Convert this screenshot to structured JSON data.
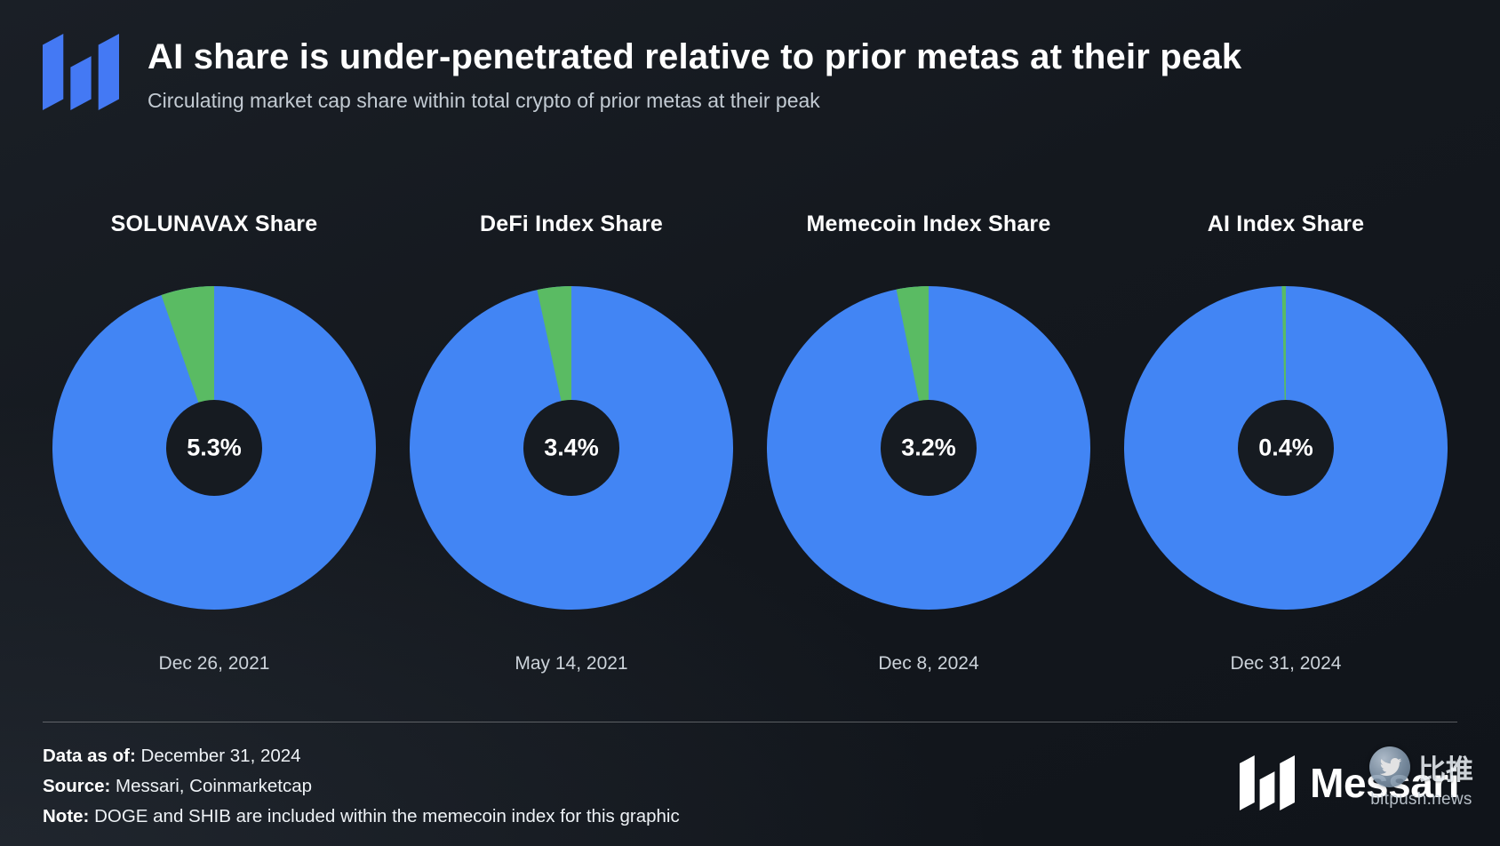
{
  "header": {
    "title": "AI share is under-penetrated relative to prior metas at their peak",
    "subtitle": "Circulating market cap share within total crypto of prior metas at their peak"
  },
  "chart_data": {
    "type": "pie",
    "subtype": "donut",
    "unit": "%",
    "start_angle": "top",
    "direction": "counterclockwise",
    "legend_position": "none",
    "colors": {
      "share": "#5ABB63",
      "rest": "#4285F4",
      "hole": "#161B21"
    },
    "charts": [
      {
        "title": "SOLUNAVAX Share",
        "share_pct": 5.3,
        "rest_pct": 94.7,
        "center_label": "5.3%",
        "date": "Dec 26, 2021"
      },
      {
        "title": "DeFi Index Share",
        "share_pct": 3.4,
        "rest_pct": 96.6,
        "center_label": "3.4%",
        "date": "May 14, 2021"
      },
      {
        "title": "Memecoin Index Share",
        "share_pct": 3.2,
        "rest_pct": 96.8,
        "center_label": "3.2%",
        "date": "Dec 8, 2024"
      },
      {
        "title": "AI Index Share",
        "share_pct": 0.4,
        "rest_pct": 99.6,
        "center_label": "0.4%",
        "date": "Dec 31, 2024"
      }
    ]
  },
  "footer": {
    "data_as_of_label": "Data as of:",
    "data_as_of_value": "December 31, 2024",
    "source_label": "Source:",
    "source_value": "Messari, Coinmarketcap",
    "note_label": "Note:",
    "note_value": "DOGE and SHIB are included within the memecoin index for this graphic",
    "brand": "Messari"
  },
  "watermark": {
    "cjk": "比推",
    "domain": "bitpush.news"
  },
  "colors": {
    "logo_blue": "#4479F4",
    "brand_white": "#FFFFFF"
  }
}
